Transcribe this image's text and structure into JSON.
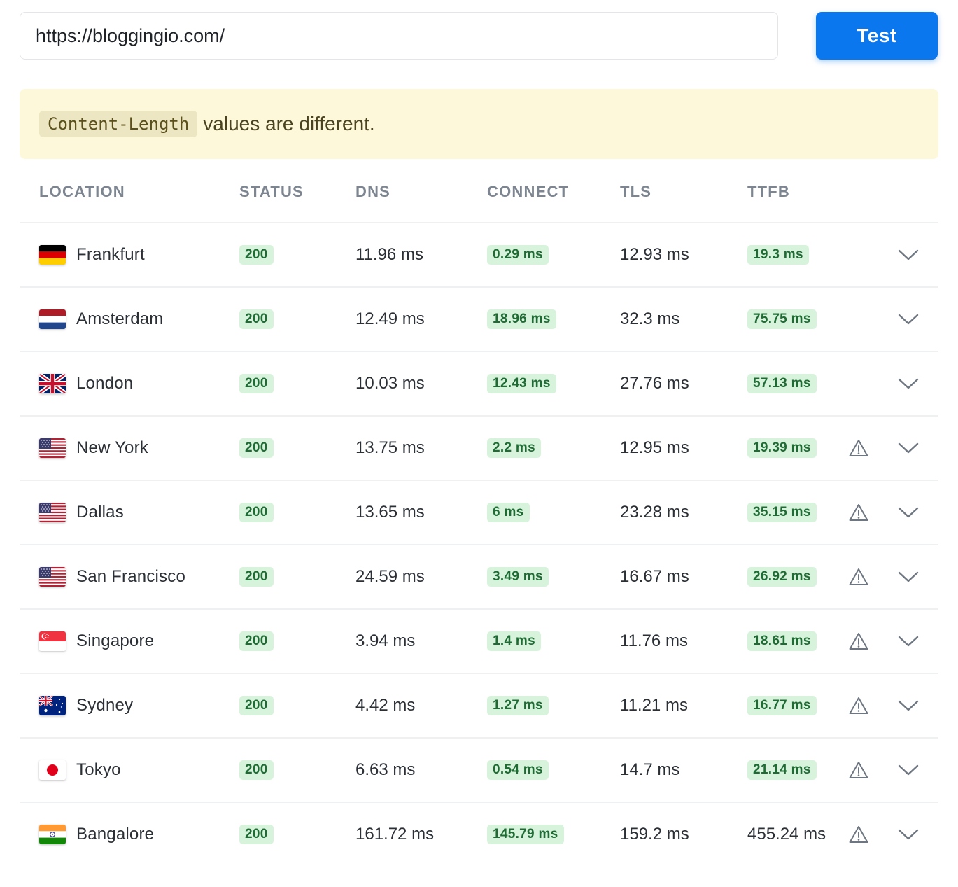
{
  "search": {
    "url": "https://bloggingio.com/",
    "button_label": "Test"
  },
  "notice": {
    "code": "Content-Length",
    "message": "values are different."
  },
  "columns": {
    "location": "LOCATION",
    "status": "STATUS",
    "dns": "DNS",
    "connect": "CONNECT",
    "tls": "TLS",
    "ttfb": "TTFB"
  },
  "colors": {
    "accent": "#0a77ee",
    "notice_bg": "#fdf8d9",
    "badge_bg": "#d8f3dc",
    "badge_text": "#1e6b34"
  },
  "rows": [
    {
      "location": "Frankfurt",
      "flag": "germany-flag-icon",
      "status": "200",
      "dns": "11.96 ms",
      "connect": "0.29 ms",
      "tls": "12.93 ms",
      "ttfb": "19.3 ms",
      "ttfb_badge": true,
      "warning": false
    },
    {
      "location": "Amsterdam",
      "flag": "netherlands-flag-icon",
      "status": "200",
      "dns": "12.49 ms",
      "connect": "18.96 ms",
      "tls": "32.3 ms",
      "ttfb": "75.75 ms",
      "ttfb_badge": true,
      "warning": false
    },
    {
      "location": "London",
      "flag": "uk-flag-icon",
      "status": "200",
      "dns": "10.03 ms",
      "connect": "12.43 ms",
      "tls": "27.76 ms",
      "ttfb": "57.13 ms",
      "ttfb_badge": true,
      "warning": false
    },
    {
      "location": "New York",
      "flag": "usa-flag-icon",
      "status": "200",
      "dns": "13.75 ms",
      "connect": "2.2 ms",
      "tls": "12.95 ms",
      "ttfb": "19.39 ms",
      "ttfb_badge": true,
      "warning": true
    },
    {
      "location": "Dallas",
      "flag": "usa-flag-icon",
      "status": "200",
      "dns": "13.65 ms",
      "connect": "6 ms",
      "tls": "23.28 ms",
      "ttfb": "35.15 ms",
      "ttfb_badge": true,
      "warning": true
    },
    {
      "location": "San Francisco",
      "flag": "usa-flag-icon",
      "status": "200",
      "dns": "24.59 ms",
      "connect": "3.49 ms",
      "tls": "16.67 ms",
      "ttfb": "26.92 ms",
      "ttfb_badge": true,
      "warning": true
    },
    {
      "location": "Singapore",
      "flag": "singapore-flag-icon",
      "status": "200",
      "dns": "3.94 ms",
      "connect": "1.4 ms",
      "tls": "11.76 ms",
      "ttfb": "18.61 ms",
      "ttfb_badge": true,
      "warning": true
    },
    {
      "location": "Sydney",
      "flag": "australia-flag-icon",
      "status": "200",
      "dns": "4.42 ms",
      "connect": "1.27 ms",
      "tls": "11.21 ms",
      "ttfb": "16.77 ms",
      "ttfb_badge": true,
      "warning": true
    },
    {
      "location": "Tokyo",
      "flag": "japan-flag-icon",
      "status": "200",
      "dns": "6.63 ms",
      "connect": "0.54 ms",
      "tls": "14.7 ms",
      "ttfb": "21.14 ms",
      "ttfb_badge": true,
      "warning": true
    },
    {
      "location": "Bangalore",
      "flag": "india-flag-icon",
      "status": "200",
      "dns": "161.72 ms",
      "connect": "145.79 ms",
      "tls": "159.2 ms",
      "ttfb": "455.24 ms",
      "ttfb_badge": false,
      "warning": true
    }
  ]
}
